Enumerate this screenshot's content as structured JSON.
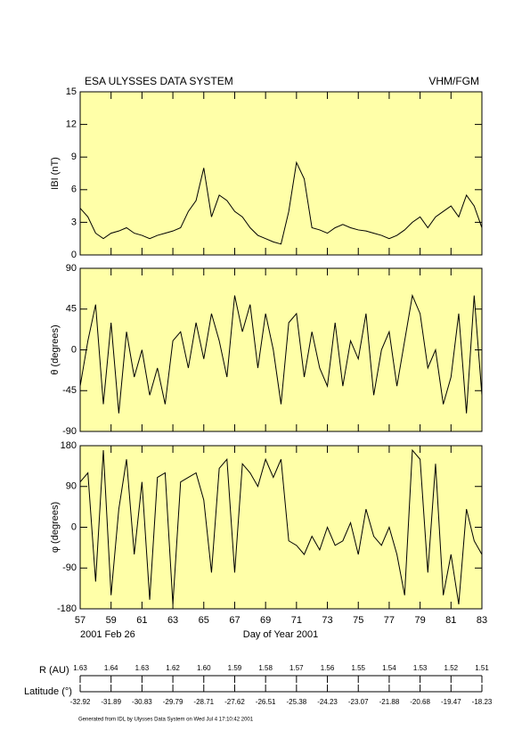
{
  "header": {
    "title": "ESA ULYSSES DATA SYSTEM",
    "instrument": "VHM/FGM"
  },
  "chart_data": [
    {
      "type": "line",
      "ylabel": "IBI (nT)",
      "color": "#000000",
      "x": [
        57,
        57.5,
        58,
        58.5,
        59,
        59.5,
        60,
        60.5,
        61,
        61.5,
        62,
        62.5,
        63,
        63.5,
        64,
        64.5,
        65,
        65.5,
        66,
        66.5,
        67,
        67.5,
        68,
        68.5,
        69,
        69.5,
        70,
        70.5,
        71,
        71.5,
        72,
        72.5,
        73,
        73.5,
        74,
        74.5,
        75,
        75.5,
        76,
        76.5,
        77,
        77.5,
        78,
        78.5,
        79,
        79.5,
        80,
        80.5,
        81,
        81.5,
        82,
        82.5,
        83
      ],
      "values": [
        4.3,
        3.5,
        2.0,
        1.5,
        2.0,
        2.2,
        2.5,
        2.0,
        1.8,
        1.5,
        1.8,
        2.0,
        2.2,
        2.5,
        4.0,
        5.0,
        8.0,
        3.5,
        5.5,
        5.0,
        4.0,
        3.5,
        2.5,
        1.8,
        1.5,
        1.2,
        1.0,
        4.0,
        8.5,
        7.0,
        2.5,
        2.3,
        2.0,
        2.5,
        2.8,
        2.5,
        2.3,
        2.2,
        2.0,
        1.8,
        1.5,
        1.8,
        2.3,
        3.0,
        3.5,
        2.5,
        3.5,
        4.0,
        4.5,
        3.5,
        5.5,
        4.5,
        2.5
      ],
      "xlim": [
        57,
        83
      ],
      "xticks": [
        57,
        59,
        61,
        63,
        65,
        67,
        69,
        71,
        73,
        75,
        77,
        79,
        81,
        83
      ],
      "ylim": [
        0,
        15
      ],
      "yticks": [
        0,
        3,
        6,
        9,
        12,
        15
      ]
    },
    {
      "type": "line",
      "ylabel": "θ (degrees)",
      "color": "#000000",
      "x": [
        57,
        57.5,
        58,
        58.5,
        59,
        59.5,
        60,
        60.5,
        61,
        61.5,
        62,
        62.5,
        63,
        63.5,
        64,
        64.5,
        65,
        65.5,
        66,
        66.5,
        67,
        67.5,
        68,
        68.5,
        69,
        69.5,
        70,
        70.5,
        71,
        71.5,
        72,
        72.5,
        73,
        73.5,
        74,
        74.5,
        75,
        75.5,
        76,
        76.5,
        77,
        77.5,
        78,
        78.5,
        79,
        79.5,
        80,
        80.5,
        81,
        81.5,
        82,
        82.5,
        83
      ],
      "values": [
        -40,
        10,
        50,
        -60,
        30,
        -70,
        20,
        -30,
        0,
        -50,
        -20,
        -60,
        10,
        20,
        -20,
        30,
        -10,
        40,
        10,
        -30,
        60,
        20,
        50,
        -20,
        40,
        0,
        -60,
        30,
        40,
        -30,
        20,
        -20,
        -40,
        30,
        -40,
        10,
        -10,
        40,
        -50,
        0,
        20,
        -40,
        10,
        60,
        40,
        -20,
        0,
        -60,
        -30,
        40,
        -70,
        60,
        -50
      ],
      "xlim": [
        57,
        83
      ],
      "xticks": [
        57,
        59,
        61,
        63,
        65,
        67,
        69,
        71,
        73,
        75,
        77,
        79,
        81,
        83
      ],
      "ylim": [
        -90,
        90
      ],
      "yticks": [
        -90,
        -45,
        0,
        45,
        90
      ]
    },
    {
      "type": "line",
      "ylabel": "φ (degrees)",
      "xlabel": "Day of Year 2001",
      "annotation": "2001 Feb 26",
      "color": "#000000",
      "x": [
        57,
        57.5,
        58,
        58.5,
        59,
        59.5,
        60,
        60.5,
        61,
        61.5,
        62,
        62.5,
        63,
        63.5,
        64,
        64.5,
        65,
        65.5,
        66,
        66.5,
        67,
        67.5,
        68,
        68.5,
        69,
        69.5,
        70,
        70.5,
        71,
        71.5,
        72,
        72.5,
        73,
        73.5,
        74,
        74.5,
        75,
        75.5,
        76,
        76.5,
        77,
        77.5,
        78,
        78.5,
        79,
        79.5,
        80,
        80.5,
        81,
        81.5,
        82,
        82.5,
        83
      ],
      "values": [
        100,
        120,
        -120,
        170,
        -150,
        40,
        150,
        -60,
        100,
        -160,
        110,
        120,
        -170,
        100,
        110,
        120,
        60,
        -100,
        130,
        150,
        -100,
        140,
        120,
        90,
        150,
        110,
        150,
        -30,
        -40,
        -60,
        -20,
        -50,
        0,
        -40,
        -30,
        10,
        -60,
        40,
        -20,
        -40,
        0,
        -60,
        -150,
        170,
        150,
        -100,
        140,
        -150,
        -60,
        -170,
        40,
        -30,
        -60
      ],
      "xlim": [
        57,
        83
      ],
      "xticks": [
        57,
        59,
        61,
        63,
        65,
        67,
        69,
        71,
        73,
        75,
        77,
        79,
        81,
        83
      ],
      "ylim": [
        -180,
        180
      ],
      "yticks": [
        -180,
        -90,
        0,
        90,
        180
      ]
    }
  ],
  "orbit": {
    "r_label": "R (AU)",
    "r_values": [
      "1.63",
      "1.64",
      "1.63",
      "1.62",
      "1.60",
      "1.59",
      "1.58",
      "1.57",
      "1.56",
      "1.55",
      "1.54",
      "1.53",
      "1.52",
      "1.51"
    ],
    "lat_label": "Latitude (°)",
    "lat_values": [
      "-32.92",
      "-31.89",
      "-30.83",
      "-29.79",
      "-28.71",
      "-27.62",
      "-26.51",
      "-25.38",
      "-24.23",
      "-23.07",
      "-21.88",
      "-20.68",
      "-19.47",
      "-18.23"
    ]
  },
  "footer": "Generated from IDL by Ulysses Data System on Wed Jul 4 17:10:42 2001"
}
